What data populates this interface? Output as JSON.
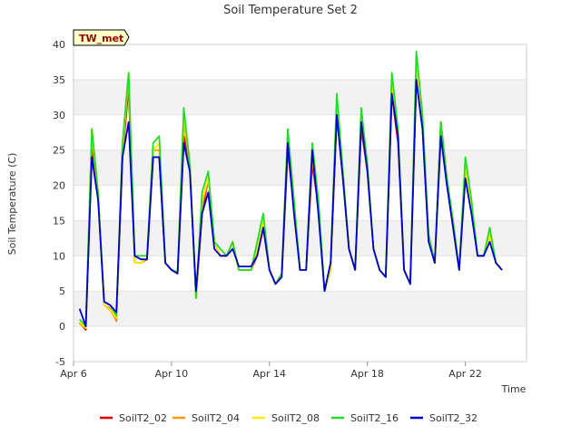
{
  "chart_data": {
    "type": "line",
    "title": "Soil Temperature Set 2",
    "xlabel": "Time",
    "ylabel": "Soil Temperature (C)",
    "station_tag": "TW_met",
    "xlim": [
      "2023-04-06",
      "2023-04-24T12:00"
    ],
    "ylim": [
      -5,
      40
    ],
    "x_ticks": [
      {
        "date": "2023-04-06",
        "label": "Apr 6"
      },
      {
        "date": "2023-04-10",
        "label": "Apr 10"
      },
      {
        "date": "2023-04-14",
        "label": "Apr 14"
      },
      {
        "date": "2023-04-18",
        "label": "Apr 18"
      },
      {
        "date": "2023-04-22",
        "label": "Apr 22"
      }
    ],
    "y_ticks": [
      -5,
      0,
      5,
      10,
      15,
      20,
      25,
      30,
      35,
      40
    ],
    "grid": "horizontal bands",
    "legend_position": "bottom",
    "x": [
      "2023-04-06T06:00",
      "2023-04-06T12:00",
      "2023-04-06T18:00",
      "2023-04-07T00:00",
      "2023-04-07T06:00",
      "2023-04-07T12:00",
      "2023-04-07T18:00",
      "2023-04-08T00:00",
      "2023-04-08T06:00",
      "2023-04-08T12:00",
      "2023-04-08T18:00",
      "2023-04-09T00:00",
      "2023-04-09T06:00",
      "2023-04-09T12:00",
      "2023-04-09T18:00",
      "2023-04-10T00:00",
      "2023-04-10T06:00",
      "2023-04-10T12:00",
      "2023-04-10T18:00",
      "2023-04-11T00:00",
      "2023-04-11T06:00",
      "2023-04-11T12:00",
      "2023-04-11T18:00",
      "2023-04-12T00:00",
      "2023-04-12T06:00",
      "2023-04-12T12:00",
      "2023-04-12T18:00",
      "2023-04-13T00:00",
      "2023-04-13T06:00",
      "2023-04-13T12:00",
      "2023-04-13T18:00",
      "2023-04-14T00:00",
      "2023-04-14T06:00",
      "2023-04-14T12:00",
      "2023-04-14T18:00",
      "2023-04-15T00:00",
      "2023-04-15T06:00",
      "2023-04-15T12:00",
      "2023-04-15T18:00",
      "2023-04-16T00:00",
      "2023-04-16T06:00",
      "2023-04-16T12:00",
      "2023-04-16T18:00",
      "2023-04-17T00:00",
      "2023-04-17T06:00",
      "2023-04-17T12:00",
      "2023-04-17T18:00",
      "2023-04-18T00:00",
      "2023-04-18T06:00",
      "2023-04-18T12:00",
      "2023-04-18T18:00",
      "2023-04-19T00:00",
      "2023-04-19T06:00",
      "2023-04-19T12:00",
      "2023-04-19T18:00",
      "2023-04-20T00:00",
      "2023-04-20T06:00",
      "2023-04-20T12:00",
      "2023-04-20T18:00",
      "2023-04-21T00:00",
      "2023-04-21T06:00",
      "2023-04-21T12:00",
      "2023-04-21T18:00",
      "2023-04-22T00:00",
      "2023-04-22T06:00",
      "2023-04-22T12:00",
      "2023-04-22T18:00",
      "2023-04-23T00:00",
      "2023-04-23T06:00",
      "2023-04-23T12:00"
    ],
    "series": [
      {
        "name": "SoilT2_02",
        "color": "#dd0000",
        "values": [
          0.5,
          -0.5,
          25.5,
          19,
          3,
          2.5,
          0.8,
          24,
          34,
          9,
          9,
          9.5,
          24,
          24,
          9,
          8,
          7.5,
          27,
          23,
          4,
          16,
          21,
          12,
          10,
          10,
          12,
          8,
          8,
          8,
          10,
          14,
          8,
          6,
          7,
          25,
          17,
          8,
          8,
          23,
          17,
          5,
          8,
          30,
          21,
          11,
          8,
          28,
          22,
          11,
          8,
          7,
          33,
          26,
          8,
          6,
          35,
          28,
          13,
          9,
          29,
          21,
          14,
          8,
          23,
          17,
          10,
          10,
          13,
          9,
          8
        ]
      },
      {
        "name": "SoilT2_04",
        "color": "#ff9900",
        "values": [
          0.4,
          -0.3,
          28,
          19,
          3,
          2.3,
          0.9,
          25,
          35,
          9,
          9,
          9.6,
          25,
          25,
          9,
          8,
          7.5,
          29,
          23,
          4,
          17,
          21,
          12,
          10,
          10,
          12,
          8,
          8,
          8,
          10.5,
          14.5,
          8,
          6,
          7,
          27,
          17,
          8,
          8,
          24,
          17,
          5,
          8,
          31,
          21,
          11,
          8,
          29,
          22,
          11,
          8,
          7,
          34,
          27,
          8,
          6,
          36,
          28,
          13,
          9,
          28,
          21,
          14,
          8,
          23,
          17,
          10,
          10,
          13,
          9,
          8
        ]
      },
      {
        "name": "SoilT2_08",
        "color": "#ffee00",
        "values": [
          0.6,
          -0.2,
          27,
          19,
          3,
          2.4,
          1.2,
          25,
          36,
          9,
          9,
          9.7,
          25,
          26,
          9,
          8,
          7.6,
          30,
          23,
          4,
          18,
          21,
          12,
          10,
          10,
          12,
          8,
          8,
          8,
          11,
          15,
          8,
          6,
          7,
          27,
          17,
          8,
          8,
          25,
          17,
          5,
          8,
          32,
          21,
          11,
          8,
          29,
          22,
          11,
          8,
          7,
          35,
          27,
          8,
          6,
          37,
          28,
          13,
          9,
          28,
          21,
          14,
          8,
          23,
          17,
          10,
          10,
          13,
          9,
          8
        ]
      },
      {
        "name": "SoilT2_16",
        "color": "#22dd22",
        "values": [
          1,
          0,
          28,
          19,
          3.5,
          3,
          1.5,
          26,
          36,
          10,
          10,
          10,
          26,
          27,
          9,
          8,
          7.7,
          31,
          23,
          4,
          19,
          22,
          12,
          11,
          10,
          12,
          8,
          8,
          8,
          12,
          16,
          8,
          6,
          7.5,
          28,
          18,
          8,
          8,
          26,
          18,
          5,
          9,
          33,
          22,
          11,
          8,
          31,
          23,
          11,
          8,
          7,
          36,
          28,
          8,
          6,
          39,
          30,
          13,
          9,
          29,
          21,
          15,
          8,
          24,
          18,
          10,
          10,
          14,
          9,
          8
        ]
      },
      {
        "name": "SoilT2_32",
        "color": "#0000cc",
        "values": [
          2.5,
          0,
          24,
          18,
          3.5,
          3,
          2,
          24,
          29,
          10,
          9.5,
          9.5,
          24,
          24,
          9,
          8,
          7.5,
          26,
          22,
          5,
          16,
          19,
          11,
          10,
          10,
          11,
          8.5,
          8.5,
          8.5,
          10,
          14,
          8,
          6,
          7,
          26,
          16,
          8,
          8,
          25,
          16,
          5,
          9,
          30,
          21,
          11,
          8,
          29,
          22,
          11,
          8,
          7,
          33,
          27,
          8,
          6,
          35,
          28,
          12,
          9,
          27,
          20,
          14,
          8,
          21,
          16,
          10,
          10,
          12,
          9,
          8
        ]
      }
    ]
  }
}
